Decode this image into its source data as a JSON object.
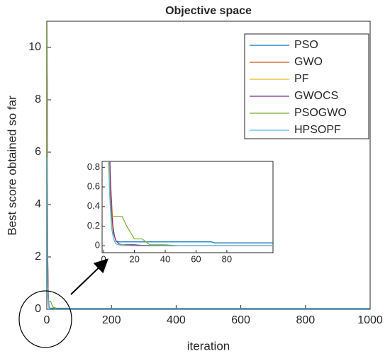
{
  "chart_data": [
    {
      "type": "line",
      "title": "Objective space",
      "xlabel": "iteration",
      "ylabel": "Best score obtained so far",
      "x": [
        1,
        2,
        3,
        4,
        5,
        6,
        7,
        8,
        10,
        12,
        15,
        20,
        25,
        30,
        40,
        50,
        70,
        72,
        90,
        1000
      ],
      "series": [
        {
          "name": "PSO",
          "color": "#0072BD",
          "values": [
            9,
            5,
            2,
            0.8,
            0.3,
            0.15,
            0.1,
            0.05,
            0.04,
            0.04,
            0.04,
            0.04,
            0.04,
            0.04,
            0.04,
            0.04,
            0.04,
            0.03,
            0.03,
            0.03
          ]
        },
        {
          "name": "GWO",
          "color": "#D95319",
          "values": [
            10,
            6,
            2,
            0.8,
            0.5,
            0.2,
            0.1,
            0.05,
            0.02,
            0.01,
            0.01,
            0.01,
            0.005,
            0.005,
            0,
            0,
            0,
            0,
            0,
            0
          ]
        },
        {
          "name": "PF",
          "color": "#EDB120",
          "values": [
            8,
            4,
            1.5,
            0.6,
            0.3,
            0.1,
            0.05,
            0.02,
            0.01,
            0,
            0,
            0,
            0,
            0,
            0,
            0,
            0,
            0,
            0,
            0
          ]
        },
        {
          "name": "GWOCS",
          "color": "#7E2F8E",
          "values": [
            9,
            5,
            1.8,
            0.9,
            0.35,
            0.2,
            0.1,
            0.05,
            0.02,
            0.01,
            0.01,
            0.01,
            0,
            0,
            0,
            0,
            0,
            0,
            0,
            0
          ]
        },
        {
          "name": "PSOGWO",
          "color": "#77AC30",
          "values": [
            10.9,
            6,
            1,
            0.5,
            0.3,
            0.3,
            0.3,
            0.3,
            0.3,
            0.3,
            0.2,
            0.07,
            0.07,
            0.01,
            0.01,
            0,
            0,
            0,
            0,
            0
          ]
        },
        {
          "name": "HPSOPF",
          "color": "#4DBEEE",
          "values": [
            5.8,
            2,
            0.9,
            0.5,
            0.2,
            0.1,
            0.05,
            0.02,
            0.01,
            0.01,
            0.005,
            0,
            0,
            0,
            0,
            0,
            0,
            0,
            0,
            0
          ]
        }
      ],
      "xlim": [
        0,
        1000
      ],
      "ylim": [
        0,
        11
      ],
      "xticks": [
        0,
        200,
        400,
        600,
        800,
        1000
      ],
      "yticks": [
        0,
        2,
        4,
        6,
        8,
        10
      ],
      "legend": "upper right"
    },
    {
      "type": "line",
      "xlim": [
        -1,
        110
      ],
      "ylim": [
        -0.07,
        0.86
      ],
      "xticks": [
        0,
        20,
        40,
        60,
        80
      ],
      "yticks": [
        0,
        0.2,
        0.4,
        0.6,
        0.8
      ]
    }
  ]
}
